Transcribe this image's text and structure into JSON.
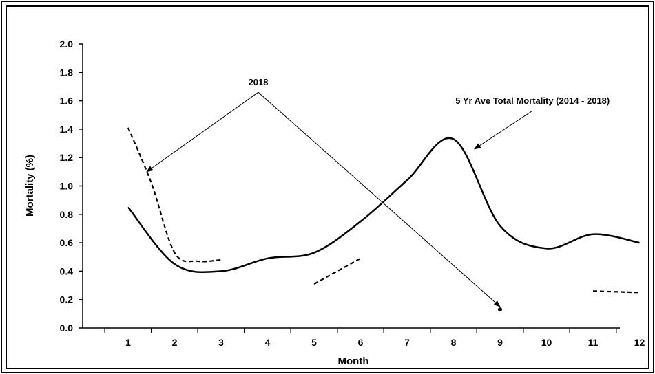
{
  "chart_data": {
    "type": "line",
    "xlabel": "Month",
    "ylabel": "Mortality  (%)",
    "ylim": [
      0,
      2.0
    ],
    "xlim": [
      0.5,
      12.5
    ],
    "x_ticks": [
      "1",
      "2",
      "3",
      "4",
      "5",
      "6",
      "7",
      "8",
      "9",
      "10",
      "11",
      "12"
    ],
    "y_ticks": [
      "0.0",
      "0.2",
      "0.4",
      "0.6",
      "0.8",
      "1.0",
      "1.2",
      "1.4",
      "1.6",
      "1.8",
      "2.0"
    ],
    "grid": false,
    "legend": "none",
    "series": [
      {
        "name": "5 Yr Ave Total Mortality (2014 - 2018)",
        "style": "solid",
        "points": [
          [
            1,
            0.85
          ],
          [
            2,
            0.45
          ],
          [
            3,
            0.4
          ],
          [
            4,
            0.49
          ],
          [
            5,
            0.53
          ],
          [
            6,
            0.75
          ],
          [
            7,
            1.04
          ],
          [
            8,
            1.33
          ],
          [
            9,
            0.72
          ],
          [
            10,
            0.56
          ],
          [
            11,
            0.66
          ],
          [
            12,
            0.6
          ]
        ]
      },
      {
        "name": "2018",
        "style": "dashed",
        "segments": [
          [
            [
              1,
              1.41
            ],
            [
              1.5,
              1.02
            ],
            [
              2,
              0.53
            ],
            [
              2.5,
              0.47
            ],
            [
              3,
              0.48
            ]
          ],
          [
            [
              5,
              0.31
            ],
            [
              6,
              0.49
            ]
          ],
          [
            [
              11,
              0.26
            ],
            [
              12,
              0.25
            ]
          ]
        ],
        "markers": [
          [
            9,
            0.13
          ]
        ]
      }
    ],
    "annotations": [
      {
        "text": "2018",
        "anchor": [
          3.8,
          1.66
        ],
        "arrows_to": [
          [
            1.4,
            1.1
          ],
          [
            9,
            0.15
          ]
        ]
      },
      {
        "text": "5 Yr Ave Total Mortality (2014 - 2018)",
        "anchor": [
          9.7,
          1.53
        ],
        "arrows_to": [
          [
            8.45,
            1.26
          ]
        ]
      }
    ],
    "colors": {
      "line": "#000000",
      "frame": "#000000",
      "background": "#ffffff"
    }
  }
}
